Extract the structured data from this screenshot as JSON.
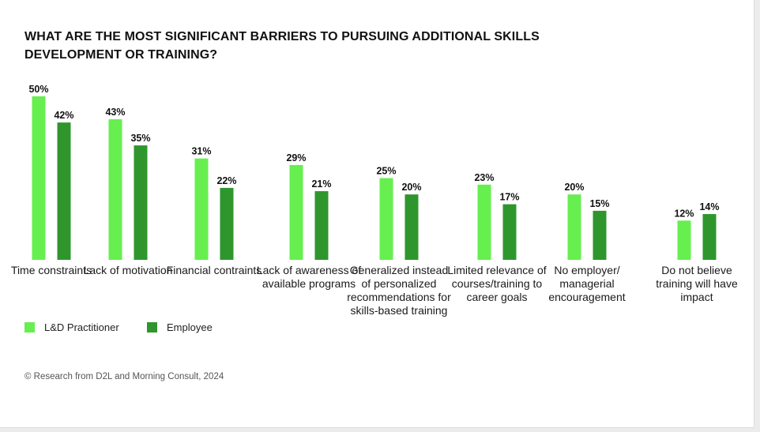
{
  "chart_data": {
    "type": "bar",
    "title": "WHAT ARE THE MOST SIGNIFICANT BARRIERS TO PURSUING ADDITIONAL SKILLS DEVELOPMENT OR TRAINING?",
    "categories": [
      "Time constraints",
      "Lack of motivation",
      "Financial contraints",
      "Lack of awareness of available programs",
      "Generalized instead of personalized recommendations for skills-based training",
      "Limited relevance of courses/training to career goals",
      "No employer/ managerial encouragement",
      "Do not believe training will have impact"
    ],
    "series": [
      {
        "name": "L&D Practitioner",
        "color": "#66ef4f",
        "values": [
          50,
          43,
          31,
          29,
          25,
          23,
          20,
          12
        ],
        "labels": [
          "50%",
          "43%",
          "31%",
          "29%",
          "25%",
          "23%",
          "20%",
          "12%"
        ]
      },
      {
        "name": "Employee",
        "color": "#2e962d",
        "values": [
          42,
          35,
          22,
          21,
          20,
          17,
          15,
          14
        ],
        "labels": [
          "42%",
          "35%",
          "22%",
          "21%",
          "20%",
          "17%",
          "15%",
          "14%"
        ]
      }
    ],
    "ylim": [
      0,
      50
    ],
    "grid": false,
    "legend": "bottom-left"
  },
  "footer": {
    "source": "© Research from D2L and Morning Consult, 2024"
  }
}
